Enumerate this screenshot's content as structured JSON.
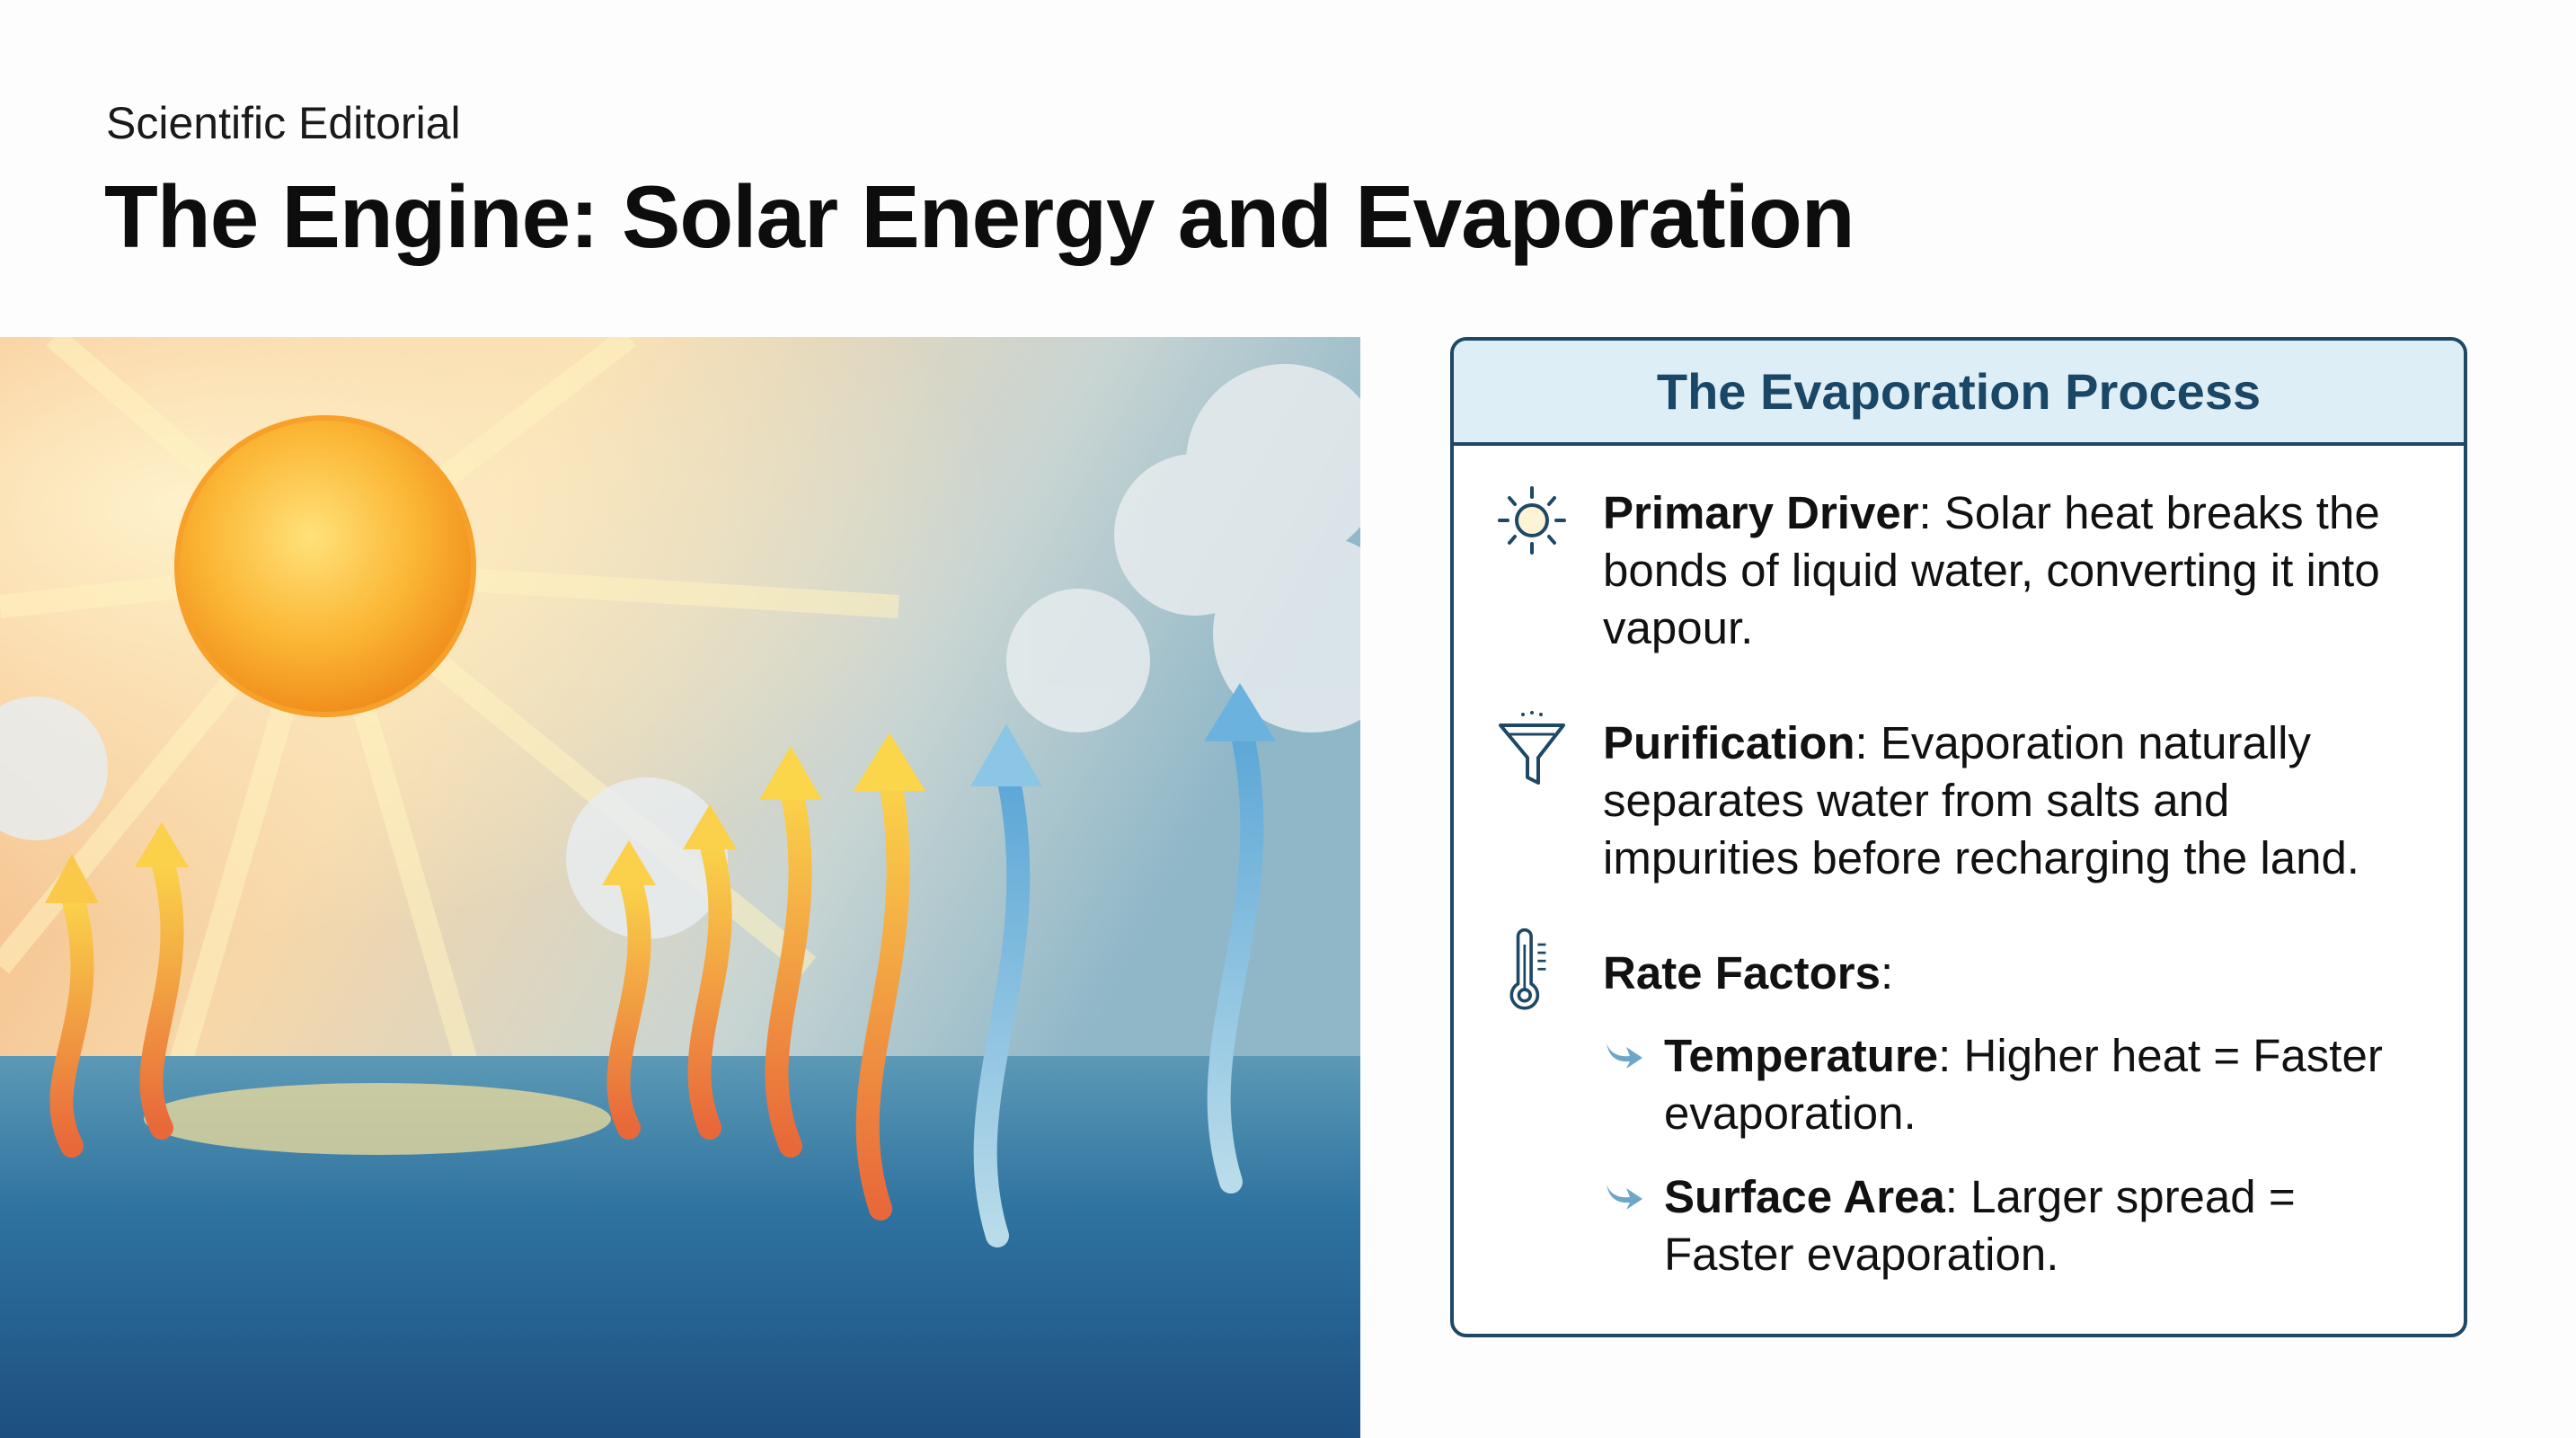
{
  "header": {
    "kicker": "Scientific Editorial",
    "title": "The Engine: Solar Energy and Evaporation"
  },
  "card": {
    "title": "The Evaporation Process",
    "items": [
      {
        "icon": "sun-icon",
        "label": "Primary Driver",
        "text": ": Solar heat breaks the bonds of liquid water, converting it into vapour."
      },
      {
        "icon": "filter-funnel-icon",
        "label": "Purification",
        "text": ": Evaporation naturally separates water from salts and impurities before recharging the land."
      },
      {
        "icon": "thermometer-icon",
        "label": "Rate Factors",
        "text": ":"
      }
    ],
    "sub_items": [
      {
        "icon": "curved-arrow-icon",
        "label": "Temperature",
        "text": ": Higher heat = Faster evaporation."
      },
      {
        "icon": "curved-arrow-icon",
        "label": "Surface Area",
        "text": ": Larger spread = Faster evaporation."
      }
    ]
  },
  "colors": {
    "accent": "#1f4866",
    "header_fill": "#ddeef7",
    "sub_arrow": "#6ea6c8"
  }
}
